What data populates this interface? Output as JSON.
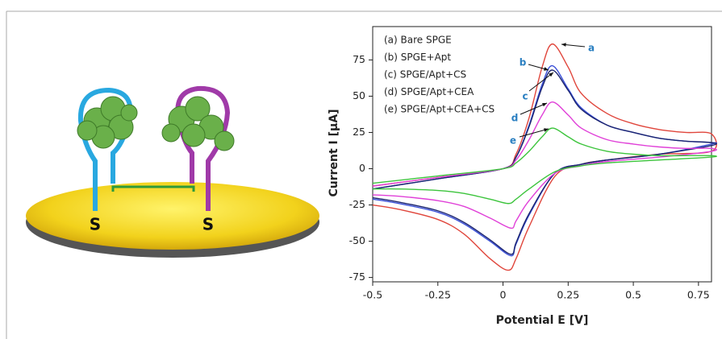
{
  "chart_data": {
    "type": "line",
    "xlabel": "Potential E [V]",
    "ylabel": "Current I [μA]",
    "xlim": [
      -0.5,
      0.8
    ],
    "ylim": [
      -78,
      98
    ],
    "xticks": [
      -0.5,
      -0.25,
      0,
      0.25,
      0.5,
      0.75
    ],
    "yticks": [
      -75,
      -50,
      -25,
      0,
      25,
      50,
      75
    ],
    "legend": "upper left",
    "annotations": [
      "a",
      "b",
      "c",
      "d",
      "e"
    ],
    "series": [
      {
        "name": "(a)  Bare SPGE",
        "color": "#e0463c",
        "x": [
          -0.5,
          -0.25,
          0,
          0.05,
          0.1,
          0.15,
          0.19,
          0.25,
          0.3,
          0.4,
          0.5,
          0.6,
          0.7,
          0.8,
          0.8,
          0.6,
          0.4,
          0.3,
          0.2,
          0.1,
          0.05,
          0.02,
          -0.05,
          -0.15,
          -0.25,
          -0.4,
          -0.5
        ],
        "values": [
          -12,
          -6,
          0,
          10,
          35,
          70,
          86,
          70,
          52,
          38,
          31,
          27,
          25,
          24,
          12,
          10,
          6,
          3,
          -5,
          -40,
          -62,
          -70,
          -62,
          -45,
          -35,
          -28,
          -25
        ]
      },
      {
        "name": "(b)  SPGE+Apt",
        "color": "#3a4fd8",
        "x": [
          -0.5,
          -0.25,
          0,
          0.05,
          0.1,
          0.15,
          0.19,
          0.25,
          0.3,
          0.4,
          0.5,
          0.6,
          0.7,
          0.8,
          0.8,
          0.6,
          0.4,
          0.3,
          0.2,
          0.1,
          0.05,
          0.03,
          -0.05,
          -0.15,
          -0.25,
          -0.4,
          -0.5
        ],
        "values": [
          -14,
          -7,
          0,
          8,
          30,
          58,
          71,
          55,
          42,
          30,
          25,
          21,
          19,
          18,
          17,
          10,
          6,
          3,
          -3,
          -32,
          -52,
          -60,
          -50,
          -38,
          -30,
          -24,
          -21
        ]
      },
      {
        "name": "(c)  SPGE/Apt+CS",
        "color": "#1c2570",
        "x": [
          -0.5,
          -0.25,
          0,
          0.05,
          0.1,
          0.15,
          0.19,
          0.25,
          0.3,
          0.4,
          0.5,
          0.6,
          0.7,
          0.8,
          0.8,
          0.6,
          0.4,
          0.3,
          0.2,
          0.1,
          0.05,
          0.03,
          -0.05,
          -0.15,
          -0.25,
          -0.4,
          -0.5
        ],
        "values": [
          -14,
          -7,
          0,
          8,
          29,
          56,
          68,
          54,
          41,
          30,
          25,
          21,
          19,
          18,
          16,
          10,
          6,
          3,
          -3,
          -31,
          -51,
          -59,
          -49,
          -37,
          -29,
          -23,
          -20
        ]
      },
      {
        "name": "(d)  SPGE/Apt+CEA",
        "color": "#e040d8",
        "x": [
          -0.5,
          -0.25,
          0,
          0.05,
          0.1,
          0.15,
          0.19,
          0.25,
          0.3,
          0.4,
          0.5,
          0.6,
          0.7,
          0.8,
          0.8,
          0.6,
          0.4,
          0.3,
          0.2,
          0.1,
          0.05,
          0.03,
          -0.05,
          -0.15,
          -0.25,
          -0.4,
          -0.5
        ],
        "values": [
          -12,
          -6,
          0,
          6,
          20,
          37,
          46,
          37,
          28,
          20,
          17,
          15,
          14,
          14,
          12,
          8,
          5,
          2,
          -3,
          -22,
          -36,
          -41,
          -34,
          -26,
          -22,
          -19,
          -18
        ]
      },
      {
        "name": "(e)  SPGE/Apt+CEA+CS",
        "color": "#3cc43c",
        "x": [
          -0.5,
          -0.25,
          0,
          0.05,
          0.1,
          0.15,
          0.19,
          0.25,
          0.3,
          0.4,
          0.5,
          0.6,
          0.7,
          0.8,
          0.8,
          0.6,
          0.4,
          0.3,
          0.2,
          0.1,
          0.05,
          0.02,
          -0.05,
          -0.15,
          -0.25,
          -0.4,
          -0.5
        ],
        "values": [
          -10,
          -5,
          0,
          4,
          12,
          22,
          28,
          22,
          17,
          12,
          10,
          9,
          9,
          9,
          8,
          6,
          4,
          2,
          -2,
          -14,
          -21,
          -24,
          -21,
          -17,
          -15,
          -14,
          -14
        ]
      }
    ]
  },
  "illustration": {
    "labels": [
      "S",
      "S"
    ]
  }
}
